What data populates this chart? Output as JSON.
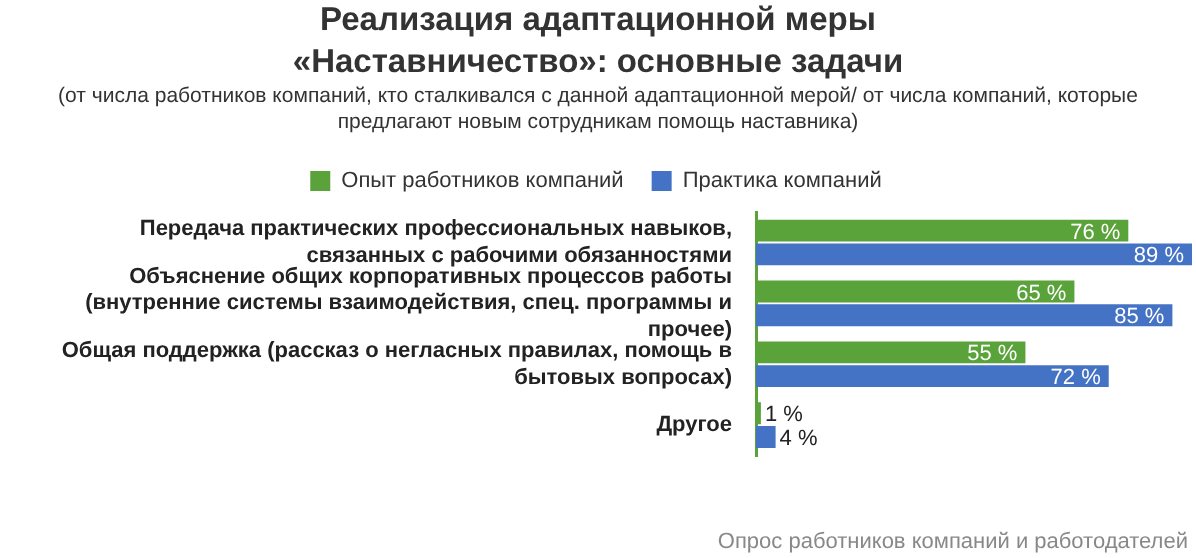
{
  "chart_data": {
    "type": "bar",
    "orientation": "horizontal",
    "title": "Реализация адаптационной меры «Наставничество»: основные задачи",
    "subtitle": "(от числа работников компаний, кто сталкивался с данной адаптационной мерой/ от числа компаний, которые предлагают новым сотрудникам помощь наставника)",
    "categories": [
      "Передача практических профессиональных навыков, связанных с рабочими обязанностями",
      "Объяснение общих корпоративных процессов работы (внутренние системы взаимодействия, спец. программы и прочее)",
      "Общая поддержка (рассказ о негласных правилах, помощь в бытовых вопросах)",
      "Другое"
    ],
    "series": [
      {
        "name": "Опыт работников компаний",
        "color": "#5aa23a",
        "values": [
          76,
          65,
          55,
          1
        ],
        "value_labels": [
          "76 %",
          "65 %",
          "55 %",
          "1 %"
        ]
      },
      {
        "name": "Практика компаний",
        "color": "#4472c4",
        "values": [
          89,
          85,
          72,
          4
        ],
        "value_labels": [
          "89 %",
          "85 %",
          "72 %",
          "4 %"
        ]
      }
    ],
    "legend": "top",
    "annotations": [
      "Опрос работников компаний и работодателей"
    ]
  }
}
